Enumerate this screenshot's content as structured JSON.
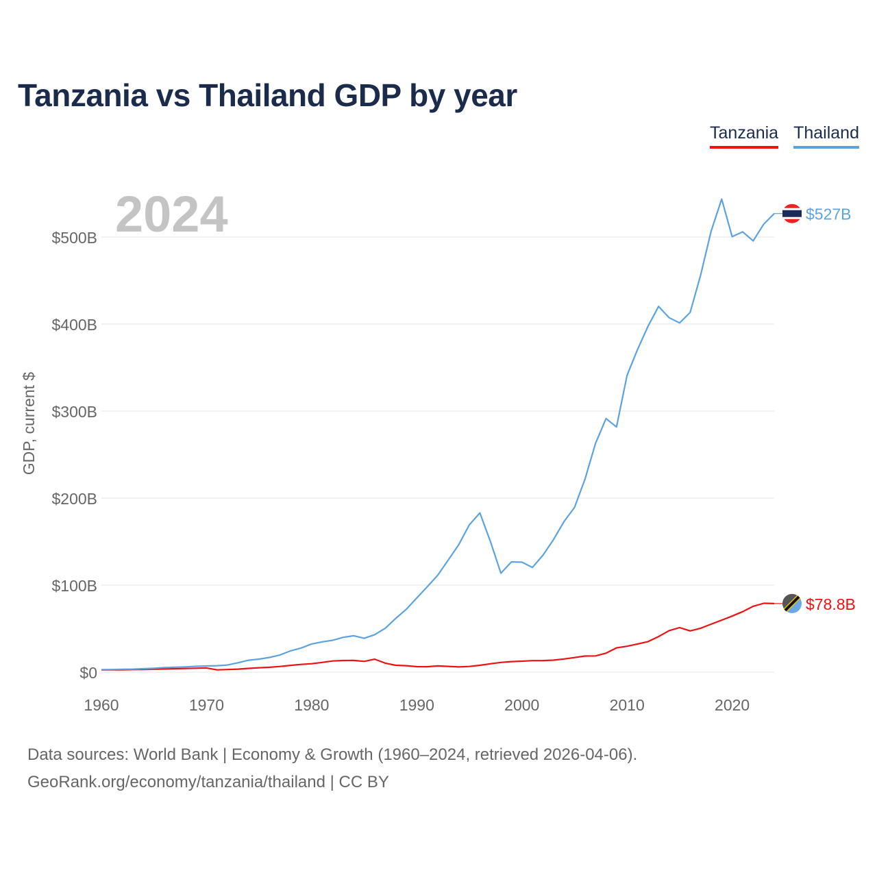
{
  "title": "Tanzania vs Thailand GDP by year",
  "legend": [
    {
      "label": "Tanzania",
      "color": "#ee1111"
    },
    {
      "label": "Thailand",
      "color": "#5ba3e0"
    }
  ],
  "year_label": "2024",
  "source_line1": "Data sources: World Bank | Economy & Growth (1960–2024, retrieved 2026-04-06).",
  "source_line2": "GeoRank.org/economy/tanzania/thailand | CC BY",
  "chart_data": {
    "type": "line",
    "title": "Tanzania vs Thailand GDP by year",
    "xlabel": "",
    "ylabel": "GDP, current $",
    "xlim": [
      1960,
      2024
    ],
    "ylim": [
      0,
      550
    ],
    "y_unit": "billion USD",
    "x_ticks": [
      1960,
      1970,
      1980,
      1990,
      2000,
      2010,
      2020
    ],
    "y_ticks": [
      {
        "value": 0,
        "label": "$0"
      },
      {
        "value": 100,
        "label": "$100B"
      },
      {
        "value": 200,
        "label": "$200B"
      },
      {
        "value": 300,
        "label": "$300B"
      },
      {
        "value": 400,
        "label": "$400B"
      },
      {
        "value": 500,
        "label": "$500B"
      }
    ],
    "grid": true,
    "legend_position": "top-right",
    "x": [
      1960,
      1961,
      1962,
      1963,
      1964,
      1965,
      1966,
      1967,
      1968,
      1969,
      1970,
      1971,
      1972,
      1973,
      1974,
      1975,
      1976,
      1977,
      1978,
      1979,
      1980,
      1981,
      1982,
      1983,
      1984,
      1985,
      1986,
      1987,
      1988,
      1989,
      1990,
      1991,
      1992,
      1993,
      1994,
      1995,
      1996,
      1997,
      1998,
      1999,
      2000,
      2001,
      2002,
      2003,
      2004,
      2005,
      2006,
      2007,
      2008,
      2009,
      2010,
      2011,
      2012,
      2013,
      2014,
      2015,
      2016,
      2017,
      2018,
      2019,
      2020,
      2021,
      2022,
      2023,
      2024
    ],
    "series": [
      {
        "name": "Tanzania",
        "color": "#ee1111",
        "end_label": "$78.8B",
        "values": [
          2.5,
          2.6,
          2.7,
          2.9,
          3.1,
          3.3,
          3.6,
          3.9,
          4.2,
          4.5,
          4.8,
          2.6,
          3.0,
          3.5,
          4.3,
          5.0,
          5.6,
          6.5,
          7.8,
          8.9,
          9.7,
          11.2,
          12.8,
          13.4,
          13.5,
          12.4,
          14.9,
          10.3,
          7.9,
          7.4,
          6.3,
          6.2,
          7.2,
          6.6,
          6.0,
          6.5,
          7.9,
          9.6,
          11.2,
          12.1,
          12.6,
          13.2,
          13.3,
          13.8,
          15.1,
          16.8,
          18.5,
          18.7,
          21.8,
          27.9,
          29.8,
          32.4,
          35.1,
          40.9,
          47.7,
          51.2,
          47.4,
          50.5,
          55.1,
          59.8,
          64.4,
          69.5,
          75.7,
          79.1,
          78.8
        ]
      },
      {
        "name": "Thailand",
        "color": "#5ba3e0",
        "end_label": "$527B",
        "values": [
          2.8,
          3.0,
          3.3,
          3.5,
          3.9,
          4.4,
          5.3,
          5.7,
          6.1,
          6.7,
          7.1,
          7.4,
          8.2,
          10.8,
          13.7,
          15.0,
          16.9,
          19.8,
          24.5,
          27.7,
          32.4,
          34.8,
          36.6,
          40.0,
          41.8,
          38.9,
          43.1,
          50.5,
          61.7,
          72.3,
          85.3,
          98.2,
          111.5,
          128.9,
          146.7,
          169.3,
          183.0,
          150.2,
          113.7,
          126.7,
          126.4,
          120.3,
          134.3,
          152.3,
          172.9,
          189.3,
          221.8,
          262.9,
          291.4,
          281.7,
          341.1,
          370.8,
          397.6,
          420.3,
          407.3,
          401.3,
          413.4,
          456.4,
          506.8,
          543.6,
          500.5,
          506.0,
          495.6,
          514.9,
          527.0
        ]
      }
    ]
  }
}
